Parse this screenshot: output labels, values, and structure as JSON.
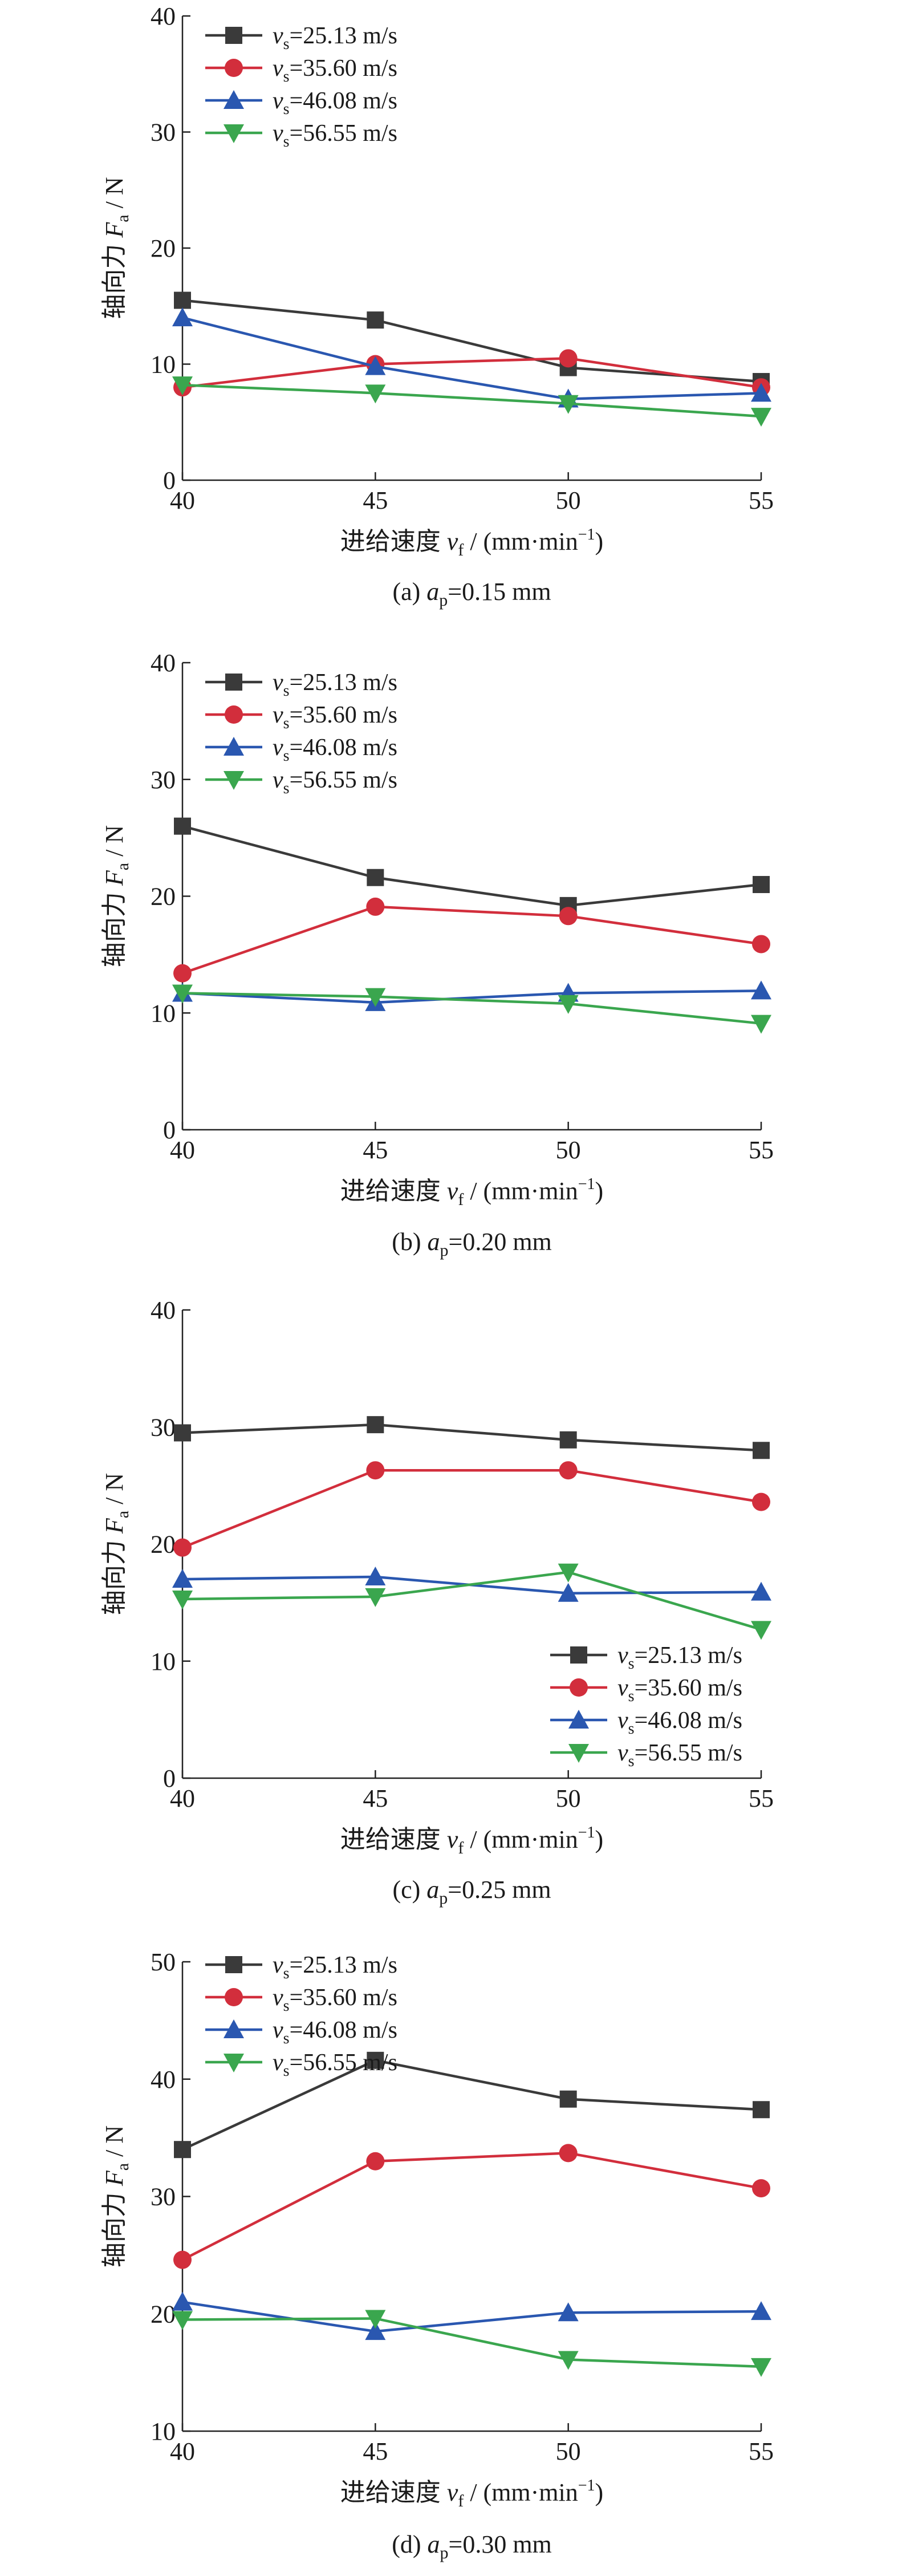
{
  "legend_items": [
    {
      "var": "v",
      "sub": "s",
      "rest": "=25.13 m/s"
    },
    {
      "var": "v",
      "sub": "s",
      "rest": "=35.60 m/s"
    },
    {
      "var": "v",
      "sub": "s",
      "rest": "=46.08 m/s"
    },
    {
      "var": "v",
      "sub": "s",
      "rest": "=56.55 m/s"
    }
  ],
  "series_style": [
    {
      "color": "#3a3a3a",
      "marker": "square"
    },
    {
      "color": "#d22e3c",
      "marker": "circle"
    },
    {
      "color": "#2a57b0",
      "marker": "triangle-up"
    },
    {
      "color": "#3aa64e",
      "marker": "triangle-down"
    }
  ],
  "xlabel": {
    "prefix": "进给速度 ",
    "var": "v",
    "sub": "f",
    "unit": " / (mm·min",
    "sup": "−1",
    "close": ")"
  },
  "ylabel": {
    "prefix": "轴向力 ",
    "var": "F",
    "sub": "a",
    "unit": " / N"
  },
  "chart_data": [
    {
      "type": "line",
      "caption": {
        "pre": "(a) ",
        "var": "a",
        "sub": "p",
        "rest": "=0.15 mm"
      },
      "x": [
        40,
        45,
        50,
        55
      ],
      "xlim": [
        40,
        55
      ],
      "ylim": [
        0,
        40
      ],
      "yticks": [
        0,
        10,
        20,
        30,
        40
      ],
      "legend_position": "top-left",
      "series": [
        {
          "name": "vs=25.13 m/s",
          "values": [
            15.5,
            13.8,
            9.7,
            8.5
          ]
        },
        {
          "name": "vs=35.60 m/s",
          "values": [
            8.0,
            10.0,
            10.5,
            8.0
          ]
        },
        {
          "name": "vs=46.08 m/s",
          "values": [
            14.0,
            9.8,
            7.0,
            7.5
          ]
        },
        {
          "name": "vs=56.55 m/s",
          "values": [
            8.2,
            7.5,
            6.6,
            5.5
          ]
        }
      ]
    },
    {
      "type": "line",
      "caption": {
        "pre": "(b) ",
        "var": "a",
        "sub": "p",
        "rest": "=0.20 mm"
      },
      "x": [
        40,
        45,
        50,
        55
      ],
      "xlim": [
        40,
        55
      ],
      "ylim": [
        0,
        40
      ],
      "yticks": [
        0,
        10,
        20,
        30,
        40
      ],
      "legend_position": "top-left",
      "series": [
        {
          "name": "vs=25.13 m/s",
          "values": [
            26.0,
            21.6,
            19.2,
            21.0
          ]
        },
        {
          "name": "vs=35.60 m/s",
          "values": [
            13.4,
            19.1,
            18.3,
            15.9
          ]
        },
        {
          "name": "vs=46.08 m/s",
          "values": [
            11.7,
            10.9,
            11.7,
            11.9
          ]
        },
        {
          "name": "vs=56.55 m/s",
          "values": [
            11.7,
            11.4,
            10.8,
            9.1
          ]
        }
      ]
    },
    {
      "type": "line",
      "caption": {
        "pre": "(c) ",
        "var": "a",
        "sub": "p",
        "rest": "=0.25 mm"
      },
      "x": [
        40,
        45,
        50,
        55
      ],
      "xlim": [
        40,
        55
      ],
      "ylim": [
        0,
        40
      ],
      "yticks": [
        0,
        10,
        20,
        30,
        40
      ],
      "legend_position": "bottom-right",
      "series": [
        {
          "name": "vs=25.13 m/s",
          "values": [
            29.5,
            30.2,
            28.9,
            28.0
          ]
        },
        {
          "name": "vs=35.60 m/s",
          "values": [
            19.7,
            26.3,
            26.3,
            23.6
          ]
        },
        {
          "name": "vs=46.08 m/s",
          "values": [
            17.0,
            17.2,
            15.8,
            15.9
          ]
        },
        {
          "name": "vs=56.55 m/s",
          "values": [
            15.3,
            15.5,
            17.6,
            12.7
          ]
        }
      ]
    },
    {
      "type": "line",
      "caption": {
        "pre": "(d) ",
        "var": "a",
        "sub": "p",
        "rest": "=0.30 mm"
      },
      "x": [
        40,
        45,
        50,
        55
      ],
      "xlim": [
        40,
        55
      ],
      "ylim": [
        10,
        50
      ],
      "yticks": [
        10,
        20,
        30,
        40,
        50
      ],
      "legend_position": "top-left",
      "series": [
        {
          "name": "vs=25.13 m/s",
          "values": [
            34.0,
            41.6,
            38.3,
            37.4
          ]
        },
        {
          "name": "vs=35.60 m/s",
          "values": [
            24.6,
            33.0,
            33.7,
            30.7
          ]
        },
        {
          "name": "vs=46.08 m/s",
          "values": [
            21.0,
            18.5,
            20.1,
            20.2
          ]
        },
        {
          "name": "vs=56.55 m/s",
          "values": [
            19.5,
            19.6,
            16.1,
            15.5
          ]
        }
      ]
    }
  ]
}
